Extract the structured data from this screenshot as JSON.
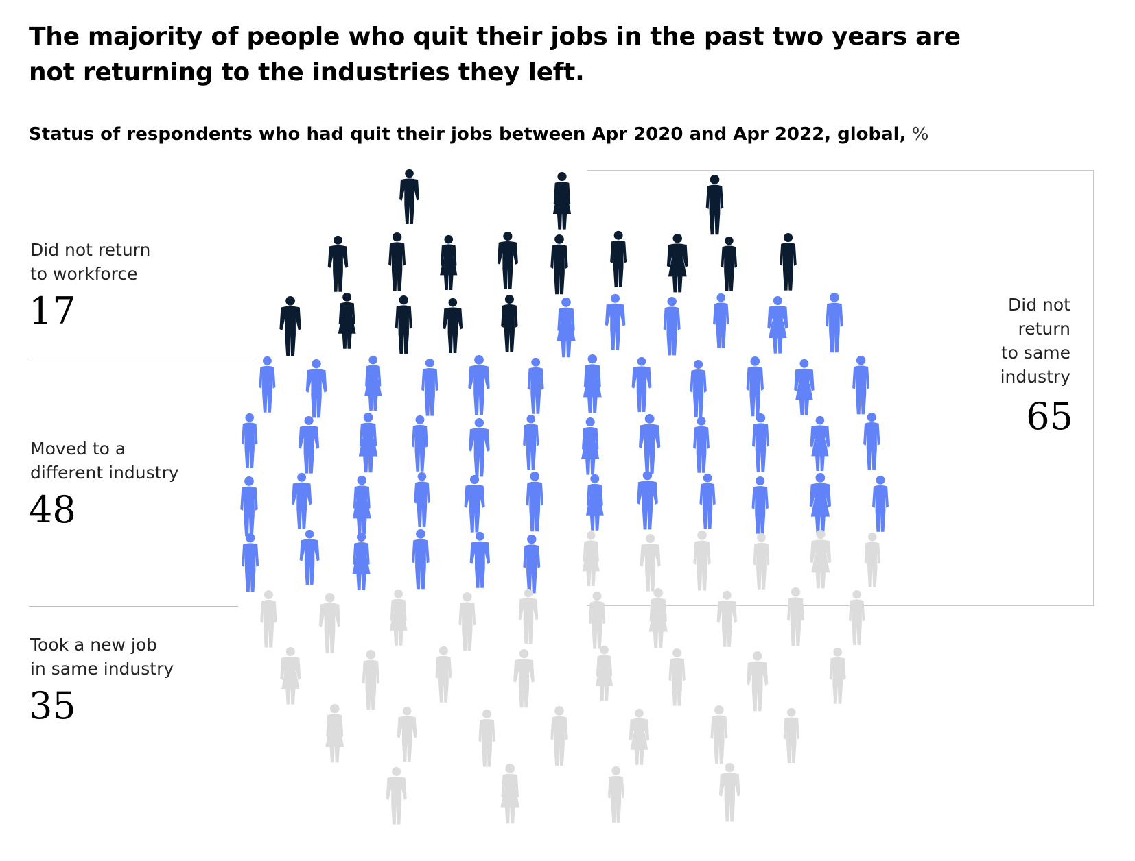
{
  "title": "The majority of people who quit their jobs in the past two years are not returning to the industries they left.",
  "subtitle": "Status of respondents who had quit their jobs between Apr 2020 and Apr 2022, global,",
  "unit": "%",
  "colors": {
    "did_not_return_to_workforce": "#0b1b30",
    "moved_to_different_industry": "#6283f8",
    "took_new_job_same_industry": "#dcdcdc",
    "bracket_line": "#c8c8c8",
    "divider": "#bdbdbd"
  },
  "categories": [
    {
      "label_line1": "Did not return",
      "label_line2": "to workforce",
      "value": "17"
    },
    {
      "label_line1": "Moved to a",
      "label_line2": "different industry",
      "value": "48"
    },
    {
      "label_line1": "Took a new job",
      "label_line2": "in same industry",
      "value": "35"
    }
  ],
  "combined": {
    "label_line1": "Did not",
    "label_line2": "return",
    "label_line3": "to same",
    "label_line4": "industry",
    "value": "65"
  },
  "chart_data": {
    "type": "pictograph",
    "title": "The majority of people who quit their jobs in the past two years are not returning to the industries they left.",
    "subtitle": "Status of respondents who had quit their jobs between Apr 2020 and Apr 2022, global, %",
    "unit": "%",
    "categories": [
      "Did not return to workforce",
      "Moved to a different industry",
      "Took a new job in same industry"
    ],
    "values": [
      17,
      48,
      35
    ],
    "group": {
      "label": "Did not return to same industry",
      "members": [
        "Did not return to workforce",
        "Moved to a different industry"
      ],
      "value": 65
    }
  }
}
